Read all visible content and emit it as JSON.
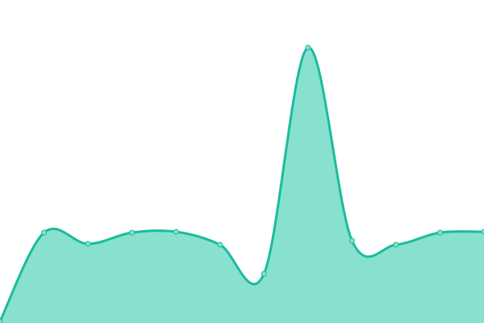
{
  "chart_data": {
    "type": "area",
    "title": "",
    "xlabel": "",
    "ylabel": "",
    "x": [
      1,
      2,
      3,
      4,
      5,
      6,
      7,
      8,
      9,
      10,
      11,
      12
    ],
    "series": [
      {
        "values": [
          2,
          112,
          98,
          112,
          113,
          97,
          61,
          341,
          102,
          97,
          112,
          113
        ]
      }
    ],
    "ylim": [
      0,
      400
    ],
    "grid": false,
    "axes_visible": false,
    "legend": "none",
    "colors": {
      "line": "#1abc9c",
      "fill": "#88e0cf",
      "marker_fill": "#88e0cf"
    }
  }
}
